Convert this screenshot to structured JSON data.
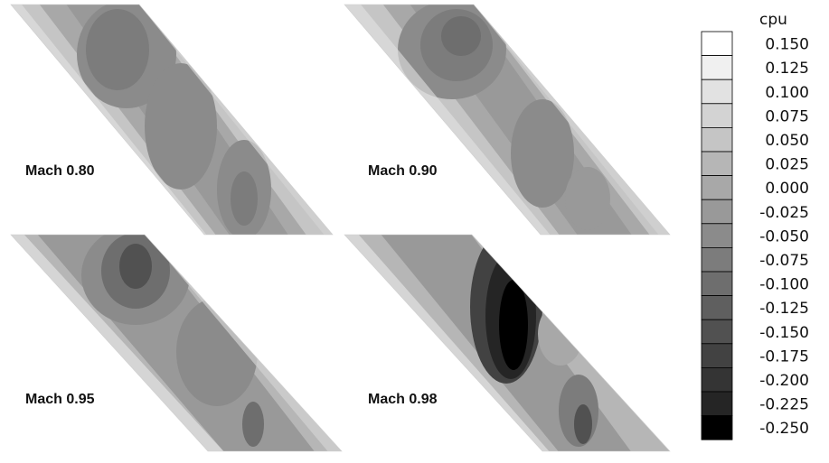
{
  "legend": {
    "title": "cpu",
    "levels": [
      "0.150",
      "0.125",
      "0.100",
      "0.075",
      "0.050",
      "0.025",
      "0.000",
      "-0.025",
      "-0.050",
      "-0.075",
      "-0.100",
      "-0.125",
      "-0.150",
      "-0.175",
      "-0.200",
      "-0.225",
      "-0.250"
    ],
    "colors": [
      "#ffffff",
      "#f0f0f0",
      "#e2e2e2",
      "#d3d3d3",
      "#c5c5c5",
      "#b6b6b6",
      "#a8a8a8",
      "#999999",
      "#8b8b8b",
      "#7c7c7c",
      "#6e6e6e",
      "#5f5f5f",
      "#515151",
      "#424242",
      "#343434",
      "#252525",
      "#000000"
    ]
  },
  "panels": [
    {
      "id": "m080",
      "label": "Mach 0.80"
    },
    {
      "id": "m090",
      "label": "Mach 0.90"
    },
    {
      "id": "m095",
      "label": "Mach 0.95"
    },
    {
      "id": "m098",
      "label": "Mach 0.98"
    }
  ]
}
